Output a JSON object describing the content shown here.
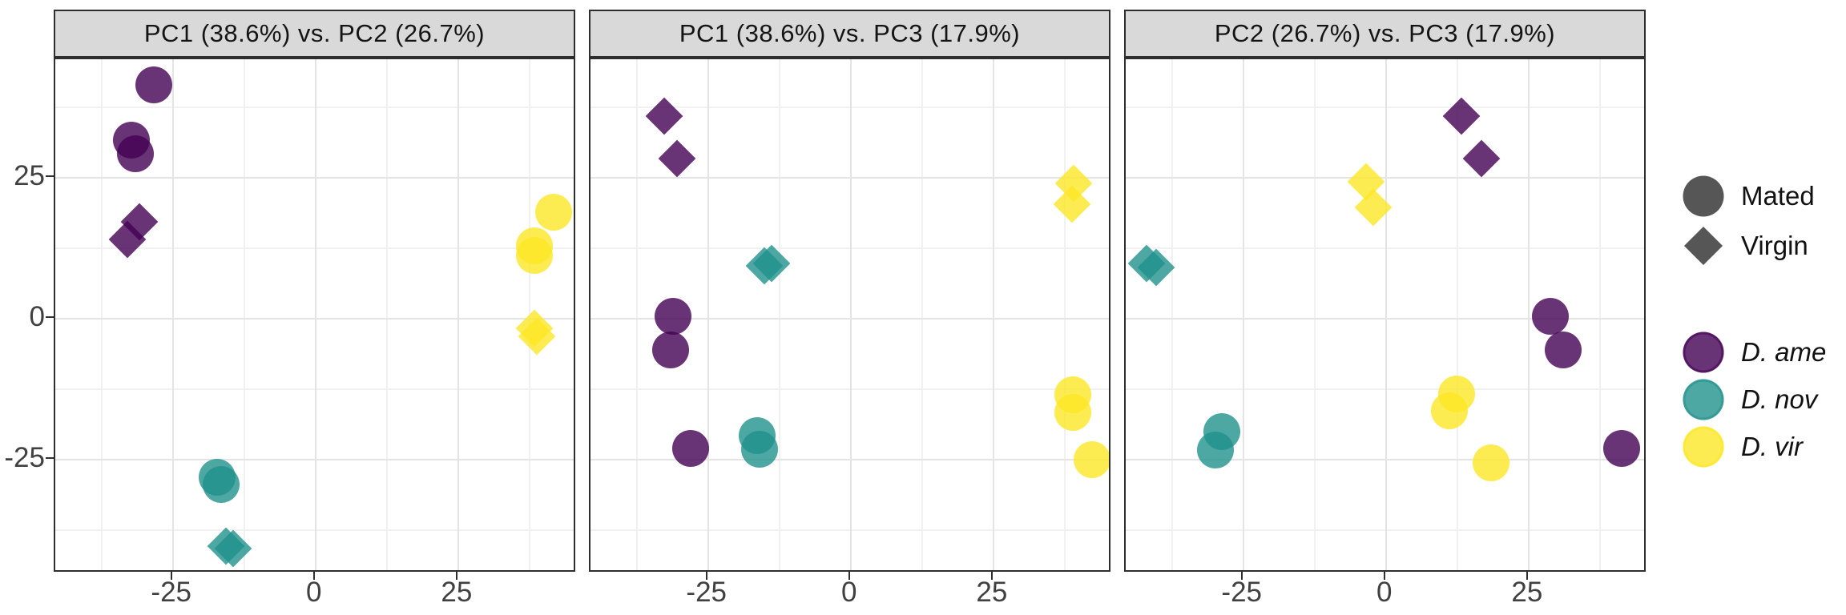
{
  "chart_data": {
    "type": "scatter",
    "facets": [
      {
        "id": "pc1-pc2",
        "title": "PC1 (38.6%) vs. PC2 (26.7%)",
        "x_axis": "PC1 (38.6%)",
        "y_axis": "PC2 (26.7%)",
        "points": [
          {
            "species": "D. ame",
            "state": "Mated",
            "x": -28.4,
            "y": 41.5
          },
          {
            "species": "D. ame",
            "state": "Mated",
            "x": -32.3,
            "y": 31.7
          },
          {
            "species": "D. ame",
            "state": "Mated",
            "x": -31.6,
            "y": 29.3
          },
          {
            "species": "D. ame",
            "state": "Virgin",
            "x": -30.9,
            "y": 17.2
          },
          {
            "species": "D. ame",
            "state": "Virgin",
            "x": -32.9,
            "y": 14.1
          },
          {
            "species": "D. nov",
            "state": "Mated",
            "x": -17.3,
            "y": -28.1
          },
          {
            "species": "D. nov",
            "state": "Mated",
            "x": -16.6,
            "y": -29.4
          },
          {
            "species": "D. nov",
            "state": "Virgin",
            "x": -15.7,
            "y": -40.3
          },
          {
            "species": "D. nov",
            "state": "Virgin",
            "x": -14.5,
            "y": -40.8
          },
          {
            "species": "D. vir",
            "state": "Mated",
            "x": 41.7,
            "y": 18.8
          },
          {
            "species": "D. vir",
            "state": "Mated",
            "x": 38.3,
            "y": 12.9
          },
          {
            "species": "D. vir",
            "state": "Mated",
            "x": 38.3,
            "y": 11.2
          },
          {
            "species": "D. vir",
            "state": "Virgin",
            "x": 38.3,
            "y": -1.7
          },
          {
            "species": "D. vir",
            "state": "Virgin",
            "x": 38.8,
            "y": -3.1
          }
        ]
      },
      {
        "id": "pc1-pc3",
        "title": "PC1 (38.6%) vs. PC3 (17.9%)",
        "x_axis": "PC1 (38.6%)",
        "y_axis": "PC3 (17.9%)",
        "points": [
          {
            "species": "D. ame",
            "state": "Virgin",
            "x": -32.7,
            "y": 35.9
          },
          {
            "species": "D. ame",
            "state": "Virgin",
            "x": -30.5,
            "y": 28.4
          },
          {
            "species": "D. nov",
            "state": "Virgin",
            "x": -15.2,
            "y": 9.4
          },
          {
            "species": "D. nov",
            "state": "Virgin",
            "x": -13.8,
            "y": 9.8
          },
          {
            "species": "D. ame",
            "state": "Mated",
            "x": -31.2,
            "y": 0.4
          },
          {
            "species": "D. ame",
            "state": "Mated",
            "x": -31.6,
            "y": -5.5
          },
          {
            "species": "D. ame",
            "state": "Mated",
            "x": -28.1,
            "y": -23.0
          },
          {
            "species": "D. nov",
            "state": "Mated",
            "x": -16.4,
            "y": -20.7
          },
          {
            "species": "D. nov",
            "state": "Mated",
            "x": -16.0,
            "y": -23.2
          },
          {
            "species": "D. vir",
            "state": "Virgin",
            "x": 39.0,
            "y": 24.0
          },
          {
            "species": "D. vir",
            "state": "Virgin",
            "x": 38.8,
            "y": 20.3
          },
          {
            "species": "D. vir",
            "state": "Mated",
            "x": 38.9,
            "y": -13.5
          },
          {
            "species": "D. vir",
            "state": "Mated",
            "x": 38.9,
            "y": -16.6
          },
          {
            "species": "D. vir",
            "state": "Mated",
            "x": 42.3,
            "y": -25.0
          }
        ]
      },
      {
        "id": "pc2-pc3",
        "title": "PC2 (26.7%) vs. PC3 (17.9%)",
        "x_axis": "PC2 (26.7%)",
        "y_axis": "PC3 (17.9%)",
        "points": [
          {
            "species": "D. ame",
            "state": "Virgin",
            "x": 13.2,
            "y": 35.9
          },
          {
            "species": "D. ame",
            "state": "Virgin",
            "x": 16.7,
            "y": 28.4
          },
          {
            "species": "D. vir",
            "state": "Virgin",
            "x": -3.5,
            "y": 24.3
          },
          {
            "species": "D. vir",
            "state": "Virgin",
            "x": -2.2,
            "y": 19.7
          },
          {
            "species": "D. nov",
            "state": "Virgin",
            "x": -41.9,
            "y": 9.8
          },
          {
            "species": "D. nov",
            "state": "Virgin",
            "x": -40.2,
            "y": 9.1
          },
          {
            "species": "D. ame",
            "state": "Mated",
            "x": 28.8,
            "y": 0.4
          },
          {
            "species": "D. ame",
            "state": "Mated",
            "x": 31.0,
            "y": -5.5
          },
          {
            "species": "D. ame",
            "state": "Mated",
            "x": 41.3,
            "y": -23.0
          },
          {
            "species": "D. nov",
            "state": "Mated",
            "x": -28.8,
            "y": -20.0
          },
          {
            "species": "D. nov",
            "state": "Mated",
            "x": -29.9,
            "y": -23.3
          },
          {
            "species": "D. vir",
            "state": "Mated",
            "x": 12.4,
            "y": -13.4
          },
          {
            "species": "D. vir",
            "state": "Mated",
            "x": 11.1,
            "y": -16.4
          },
          {
            "species": "D. vir",
            "state": "Mated",
            "x": 18.4,
            "y": -25.6
          }
        ]
      }
    ],
    "x_ticks": [
      -25,
      0,
      25
    ],
    "x_tick_labels": [
      "-25",
      "0",
      "25"
    ],
    "y_ticks": [
      25,
      0,
      -25
    ],
    "y_tick_labels": [
      "25",
      "0",
      "-25"
    ],
    "minor_ticks": [
      -37.5,
      -12.5,
      12.5,
      37.5
    ],
    "x_range": [
      -45.6,
      45.8
    ],
    "y_range": [
      -45.2,
      46.0
    ],
    "grid": "major+minor",
    "legend_position": "right"
  },
  "legend": {
    "shape_group": [
      {
        "label": "Mated",
        "shape": "circle"
      },
      {
        "label": "Virgin",
        "shape": "diamond"
      }
    ],
    "color_group": [
      {
        "label": "D. ame",
        "color": "#440154"
      },
      {
        "label": "D. nov",
        "color": "#21918c"
      },
      {
        "label": "D. vir",
        "color": "#fde725"
      }
    ],
    "shape_key_color": "#565656"
  },
  "colors": {
    "species": {
      "D. ame": "#440154",
      "D. nov": "#21918c",
      "D. vir": "#fde725"
    },
    "point_alpha": 0.8,
    "strip_background": "#d9d9d9",
    "panel_border": "#2e2e2e",
    "grid_major": "#e4e4e4",
    "grid_minor": "#f1f1f1",
    "tick_text": "#404040"
  }
}
